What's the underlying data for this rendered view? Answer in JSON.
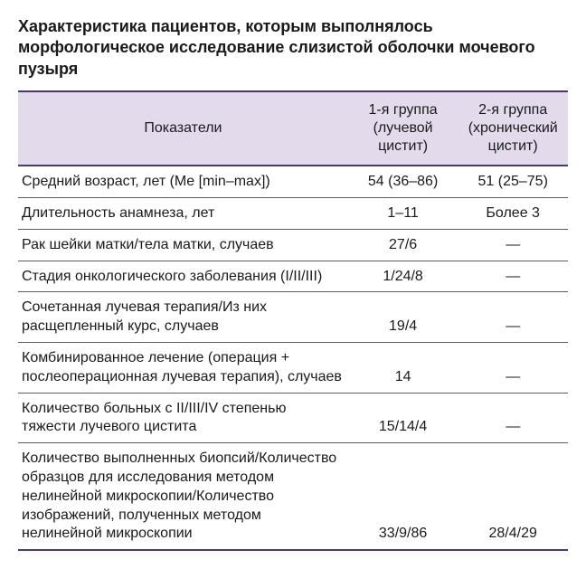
{
  "title": "Характеристика пациентов, которым выполнялось морфологическое исследование слизистой оболочки мочевого пузыря",
  "table": {
    "columns": [
      "Показатели",
      "1-я группа (лучевой цистит)",
      "2-я группа (хронический цистит)"
    ],
    "col_widths_pct": [
      60,
      20,
      20
    ],
    "header_bg": "#e3dbeb",
    "border_color_heavy": "#4a3a66",
    "border_color_light": "#5c5c5c",
    "text_color": "#1a1a1a",
    "font_family": "Arial",
    "title_fontsize_pt": 14,
    "header_fontsize_pt": 12,
    "body_fontsize_pt": 12,
    "rows": [
      {
        "label": "Средний возраст, лет (Me [min–max])",
        "g1": "54 (36–86)",
        "g2": "51 (25–75)"
      },
      {
        "label": "Длительность анамнеза, лет",
        "g1": "1–11",
        "g2": "Более 3"
      },
      {
        "label": "Рак шейки матки/тела матки, случаев",
        "g1": "27/6",
        "g2": "—"
      },
      {
        "label": "Стадия онкологического заболевания (I/II/III)",
        "g1": "1/24/8",
        "g2": "—"
      },
      {
        "label": "Сочетанная лучевая терапия/Из них расщепленный курс, случаев",
        "g1": "19/4",
        "g2": "—"
      },
      {
        "label": "Комбинированное лечение (операция + послеоперационная лучевая терапия), случаев",
        "g1": "14",
        "g2": "—"
      },
      {
        "label": "Количество больных с II/III/IV степенью тяжести лучевого цистита",
        "g1": "15/14/4",
        "g2": "—"
      },
      {
        "label": "Количество выполненных биопсий/Количество образцов для исследования методом нелинейной микроскопии/Количество изображений, полученных методом нелинейной микроскопии",
        "g1": "33/9/86",
        "g2": "28/4/29"
      }
    ]
  }
}
